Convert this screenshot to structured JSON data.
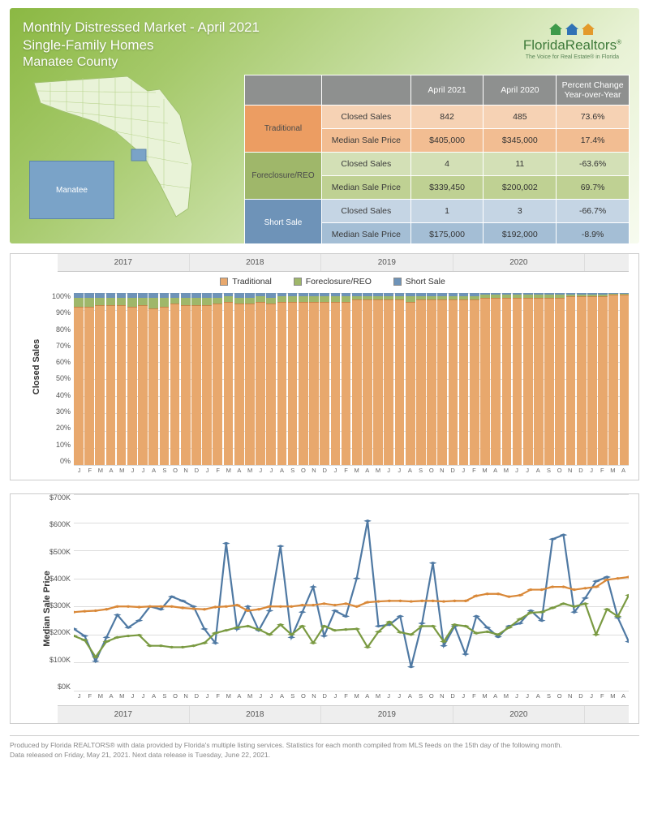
{
  "header": {
    "title": "Monthly Distressed Market - April 2021",
    "subtitle": "Single-Family Homes",
    "county": "Manatee County",
    "county_label": "Manatee"
  },
  "logo": {
    "brand": "FloridaRealtors",
    "reg": "®",
    "tagline": "The Voice for Real Estate® in Florida",
    "house_colors": [
      "#3e9a4a",
      "#3173b5",
      "#e39a2b"
    ]
  },
  "table": {
    "cols": [
      "April 2021",
      "April 2020",
      "Percent Change Year-over-Year"
    ],
    "categories": [
      {
        "name": "Traditional",
        "cat_bg": "#ec9d62",
        "row_bgs": [
          "#f6d2b4",
          "#f2bd92"
        ],
        "rows": [
          {
            "metric": "Closed Sales",
            "vals": [
              "842",
              "485",
              "73.6%"
            ]
          },
          {
            "metric": "Median Sale Price",
            "vals": [
              "$405,000",
              "$345,000",
              "17.4%"
            ]
          }
        ]
      },
      {
        "name": "Foreclosure/REO",
        "cat_bg": "#9fb76a",
        "row_bgs": [
          "#d3e0b6",
          "#bfd193"
        ],
        "rows": [
          {
            "metric": "Closed Sales",
            "vals": [
              "4",
              "11",
              "-63.6%"
            ]
          },
          {
            "metric": "Median Sale Price",
            "vals": [
              "$339,450",
              "$200,002",
              "69.7%"
            ]
          }
        ]
      },
      {
        "name": "Short Sale",
        "cat_bg": "#6e93b8",
        "row_bgs": [
          "#c5d5e4",
          "#a4bed5"
        ],
        "rows": [
          {
            "metric": "Closed Sales",
            "vals": [
              "1",
              "3",
              "-66.7%"
            ]
          },
          {
            "metric": "Median Sale Price",
            "vals": [
              "$175,000",
              "$192,000",
              "-8.9%"
            ]
          }
        ]
      }
    ]
  },
  "legend": {
    "items": [
      {
        "label": "Traditional",
        "color": "#e8a86d"
      },
      {
        "label": "Foreclosure/REO",
        "color": "#9fb76a"
      },
      {
        "label": "Short Sale",
        "color": "#6e93b8"
      }
    ]
  },
  "years": [
    "2017",
    "2018",
    "2019",
    "2020"
  ],
  "months": [
    "J",
    "F",
    "M",
    "A",
    "M",
    "J",
    "J",
    "A",
    "S",
    "O",
    "N",
    "D",
    "J",
    "F",
    "M",
    "A",
    "M",
    "J",
    "J",
    "A",
    "S",
    "O",
    "N",
    "D",
    "J",
    "F",
    "M",
    "A",
    "M",
    "J",
    "J",
    "A",
    "S",
    "O",
    "N",
    "D",
    "J",
    "F",
    "M",
    "A",
    "M",
    "J",
    "J",
    "A",
    "S",
    "O",
    "N",
    "D",
    "J",
    "F",
    "M",
    "A"
  ],
  "closed_sales_chart": {
    "type": "stacked-bar",
    "y_title": "Closed Sales",
    "y_ticks": [
      "100%",
      "90%",
      "80%",
      "70%",
      "60%",
      "50%",
      "40%",
      "30%",
      "20%",
      "10%",
      "0%"
    ],
    "ylim": [
      0,
      100
    ],
    "background": "#ffffff",
    "grid_color": "#dddddd",
    "series_colors": {
      "traditional": "#e8a86d",
      "foreclosure": "#9fb76a",
      "short": "#6e93b8"
    },
    "traditional_pct": [
      92,
      92,
      93,
      93,
      93,
      92,
      93,
      91,
      92,
      94,
      93,
      93,
      93,
      94,
      95,
      94,
      94,
      95,
      94,
      95,
      95,
      95,
      95,
      95,
      95,
      95,
      96,
      96,
      96,
      96,
      96,
      95,
      96,
      96,
      96,
      96,
      96,
      96,
      97,
      97,
      97,
      97,
      97,
      97,
      97,
      97,
      98,
      98,
      98,
      98,
      99,
      99
    ],
    "foreclosure_pct": [
      5,
      5,
      4,
      4,
      4,
      5,
      4,
      6,
      5,
      3,
      4,
      4,
      4,
      3,
      3,
      3,
      3,
      3,
      3,
      3,
      3,
      3,
      3,
      3,
      3,
      3,
      2,
      2,
      2,
      2,
      2,
      3,
      2,
      2,
      2,
      2,
      2,
      2,
      2,
      2,
      2,
      2,
      2,
      2,
      2,
      2,
      1,
      1,
      1,
      1,
      0.5,
      0.5
    ],
    "short_pct": [
      3,
      3,
      3,
      3,
      3,
      3,
      3,
      3,
      3,
      3,
      3,
      3,
      3,
      3,
      2,
      3,
      3,
      2,
      3,
      2,
      2,
      2,
      2,
      2,
      2,
      2,
      2,
      2,
      2,
      2,
      2,
      2,
      2,
      2,
      2,
      2,
      2,
      2,
      1,
      1,
      1,
      1,
      1,
      1,
      1,
      1,
      1,
      1,
      1,
      1,
      0.5,
      0.5
    ]
  },
  "median_price_chart": {
    "type": "line",
    "y_title": "Median Sale Price",
    "y_ticks": [
      "$700K",
      "$600K",
      "$500K",
      "$400K",
      "$300K",
      "$200K",
      "$100K",
      "$0K"
    ],
    "ylim": [
      0,
      700
    ],
    "background": "#ffffff",
    "grid_color": "#dddddd",
    "line_width": 2.2,
    "marker_style": "diamond",
    "marker_size": 5,
    "series": {
      "traditional": {
        "color": "#d98838",
        "values": [
          280,
          283,
          285,
          290,
          300,
          300,
          298,
          300,
          300,
          300,
          295,
          292,
          290,
          298,
          300,
          305,
          285,
          290,
          300,
          300,
          300,
          305,
          305,
          310,
          305,
          310,
          300,
          315,
          318,
          320,
          320,
          318,
          320,
          320,
          318,
          320,
          320,
          338,
          345,
          345,
          335,
          340,
          360,
          360,
          370,
          370,
          360,
          365,
          370,
          395,
          400,
          405
        ]
      },
      "foreclosure": {
        "color": "#7a9a42",
        "values": [
          195,
          180,
          120,
          175,
          190,
          195,
          198,
          160,
          160,
          155,
          155,
          160,
          170,
          205,
          215,
          225,
          230,
          218,
          200,
          235,
          200,
          230,
          170,
          230,
          215,
          218,
          220,
          155,
          210,
          245,
          208,
          200,
          230,
          230,
          175,
          235,
          230,
          205,
          210,
          200,
          225,
          255,
          278,
          280,
          295,
          310,
          300,
          310,
          200,
          290,
          265,
          340
        ]
      },
      "short": {
        "color": "#4f79a3",
        "values": [
          220,
          195,
          105,
          190,
          270,
          225,
          250,
          300,
          290,
          335,
          320,
          300,
          220,
          170,
          525,
          220,
          300,
          215,
          285,
          515,
          190,
          280,
          370,
          195,
          285,
          265,
          400,
          605,
          230,
          235,
          265,
          85,
          240,
          455,
          160,
          230,
          130,
          265,
          225,
          192,
          230,
          240,
          285,
          250,
          540,
          555,
          280,
          330,
          390,
          405,
          260,
          175
        ]
      }
    }
  },
  "footer": {
    "line1": "Produced by Florida REALTORS® with data provided by Florida's multiple listing services. Statistics for each month compiled from MLS feeds on the 15th day of the following month.",
    "line2": "Data released on Friday, May 21, 2021. Next data release is Tuesday, June 22, 2021."
  }
}
